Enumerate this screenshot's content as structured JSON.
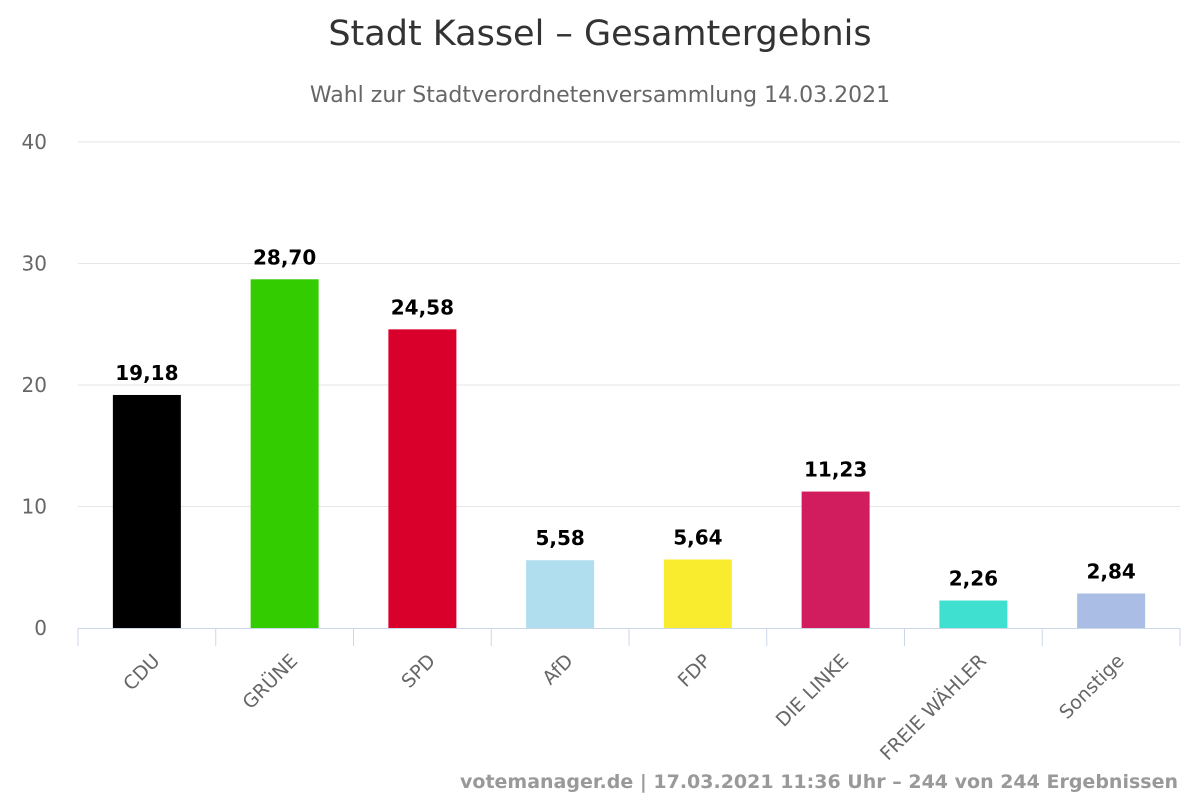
{
  "title": "Stadt Kassel – Gesamtergebnis",
  "subtitle": "Wahl zur Stadtverordnetenversammlung 14.03.2021",
  "credits": "votemanager.de | 17.03.2021 11:36 Uhr – 244 von 244 Ergebnissen",
  "chart_data": {
    "type": "bar",
    "title": "Stadt Kassel – Gesamtergebnis",
    "subtitle": "Wahl zur Stadtverordnetenversammlung 14.03.2021",
    "categories": [
      "CDU",
      "GRÜNE",
      "SPD",
      "AfD",
      "FDP",
      "DIE LINKE",
      "FREIE WÄHLER",
      "Sonstige"
    ],
    "values": [
      19.18,
      28.7,
      24.58,
      5.58,
      5.64,
      11.23,
      2.26,
      2.84
    ],
    "data_labels": [
      "19,18",
      "28,70",
      "24,58",
      "5,58",
      "5,64",
      "11,23",
      "2,26",
      "2,84"
    ],
    "colors": [
      "#000000",
      "#33cc00",
      "#d9002b",
      "#b0deee",
      "#f9ec2f",
      "#d11d5e",
      "#3fe0cf",
      "#a9bde5"
    ],
    "ylim": [
      0,
      40
    ],
    "yticks": [
      0,
      10,
      20,
      30,
      40
    ],
    "grid": true,
    "legend": "none"
  }
}
